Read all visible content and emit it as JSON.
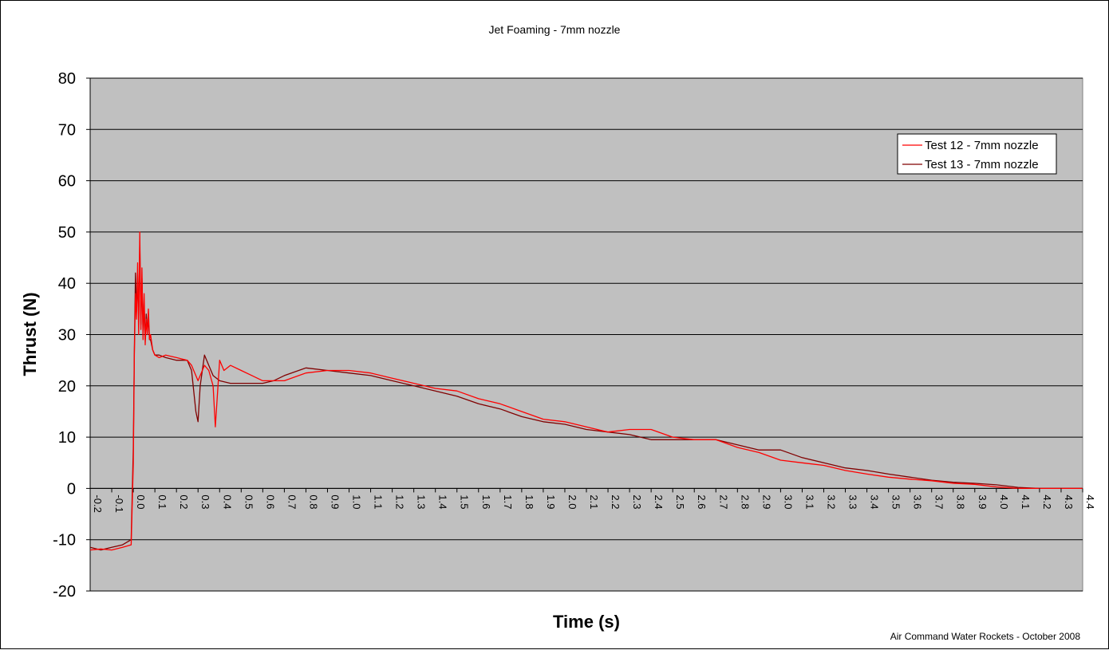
{
  "chart_data": {
    "type": "line",
    "title": "Jet Foaming - 7mm nozzle",
    "xlabel": "Time (s)",
    "ylabel": "Thrust (N)",
    "xlim": [
      -0.2,
      4.4
    ],
    "ylim": [
      -20,
      80
    ],
    "yticks": [
      "80",
      "70",
      "60",
      "50",
      "40",
      "30",
      "20",
      "10",
      "0",
      "-10",
      "-20"
    ],
    "xticks": [
      "-0.2",
      "-0.1",
      "0.0",
      "0.1",
      "0.2",
      "0.3",
      "0.4",
      "0.5",
      "0.6",
      "0.7",
      "0.8",
      "0.9",
      "1.0",
      "1.1",
      "1.2",
      "1.3",
      "1.4",
      "1.5",
      "1.6",
      "1.7",
      "1.8",
      "1.9",
      "2.0",
      "2.1",
      "2.2",
      "2.3",
      "2.4",
      "2.5",
      "2.6",
      "2.7",
      "2.8",
      "2.9",
      "3.0",
      "3.1",
      "3.2",
      "3.3",
      "3.4",
      "3.5",
      "3.6",
      "3.7",
      "3.8",
      "3.9",
      "4.0",
      "4.1",
      "4.2",
      "4.3",
      "4.4"
    ],
    "grid": true,
    "legend_position": "top-right",
    "plot_background": "#c0c0c0",
    "series": [
      {
        "name": "Test 12 - 7mm nozzle",
        "color": "#ff0000",
        "x": [
          -0.2,
          -0.15,
          -0.1,
          -0.05,
          -0.01,
          0.0,
          0.005,
          0.01,
          0.015,
          0.02,
          0.025,
          0.03,
          0.035,
          0.04,
          0.045,
          0.05,
          0.055,
          0.06,
          0.065,
          0.07,
          0.075,
          0.08,
          0.09,
          0.1,
          0.12,
          0.15,
          0.2,
          0.25,
          0.27,
          0.3,
          0.33,
          0.35,
          0.37,
          0.38,
          0.4,
          0.42,
          0.45,
          0.5,
          0.55,
          0.6,
          0.65,
          0.7,
          0.8,
          0.9,
          1.0,
          1.1,
          1.2,
          1.3,
          1.4,
          1.5,
          1.6,
          1.7,
          1.8,
          1.9,
          2.0,
          2.1,
          2.2,
          2.3,
          2.4,
          2.5,
          2.6,
          2.7,
          2.8,
          2.9,
          3.0,
          3.1,
          3.2,
          3.3,
          3.4,
          3.5,
          3.6,
          3.7,
          3.8,
          3.9,
          4.0,
          4.1,
          4.2,
          4.3,
          4.4
        ],
        "y": [
          -12,
          -11.8,
          -12,
          -11.5,
          -11,
          5,
          26,
          38,
          33,
          44,
          30,
          50,
          31,
          43,
          29,
          38,
          28,
          33,
          30,
          35,
          29,
          30,
          27,
          26,
          25.5,
          26,
          25.5,
          25,
          24,
          21,
          24,
          23,
          20,
          12,
          25,
          23,
          24,
          23,
          22,
          21,
          21,
          21,
          22.5,
          23,
          23,
          22.5,
          21.5,
          20.5,
          19.5,
          19,
          17.5,
          16.5,
          15,
          13.5,
          13,
          12,
          11,
          11.5,
          11.5,
          10,
          9.5,
          9.5,
          8,
          7,
          5.5,
          5,
          4.5,
          3.5,
          2.8,
          2.2,
          1.8,
          1.5,
          1,
          0.8,
          0.3,
          0,
          0,
          0,
          0
        ]
      },
      {
        "name": "Test 13 - 7mm nozzle",
        "color": "#800000",
        "x": [
          -0.2,
          -0.15,
          -0.1,
          -0.05,
          -0.01,
          0.0,
          0.005,
          0.01,
          0.015,
          0.02,
          0.025,
          0.03,
          0.035,
          0.04,
          0.045,
          0.05,
          0.055,
          0.06,
          0.065,
          0.07,
          0.075,
          0.08,
          0.09,
          0.1,
          0.12,
          0.15,
          0.2,
          0.25,
          0.27,
          0.29,
          0.3,
          0.31,
          0.33,
          0.35,
          0.37,
          0.4,
          0.45,
          0.5,
          0.55,
          0.6,
          0.65,
          0.7,
          0.8,
          0.9,
          1.0,
          1.1,
          1.2,
          1.3,
          1.4,
          1.5,
          1.6,
          1.7,
          1.8,
          1.9,
          2.0,
          2.1,
          2.2,
          2.3,
          2.4,
          2.5,
          2.6,
          2.7,
          2.8,
          2.9,
          3.0,
          3.1,
          3.2,
          3.3,
          3.4,
          3.5,
          3.6,
          3.7,
          3.8,
          3.9,
          4.0,
          4.1,
          4.2,
          4.3,
          4.4
        ],
        "y": [
          -11.5,
          -12,
          -11.5,
          -11,
          -10,
          8,
          27,
          42,
          35,
          40,
          33,
          48,
          32,
          41,
          30,
          36,
          29,
          34,
          31,
          33,
          29,
          29,
          27,
          26,
          26,
          25.5,
          25,
          25,
          23,
          15,
          13,
          20,
          26,
          24,
          22,
          21,
          20.5,
          20.5,
          20.5,
          20.5,
          21,
          22,
          23.5,
          23,
          22.5,
          22,
          21,
          20,
          19,
          18,
          16.5,
          15.5,
          14,
          13,
          12.5,
          11.5,
          11,
          10.5,
          9.5,
          9.5,
          9.5,
          9.5,
          8.5,
          7.5,
          7.5,
          6,
          5,
          4,
          3.5,
          2.8,
          2.2,
          1.6,
          1.2,
          1,
          0.7,
          0.2,
          0,
          0,
          0
        ]
      }
    ]
  },
  "footer": {
    "credit": "Air Command Water Rockets - October 2008"
  }
}
